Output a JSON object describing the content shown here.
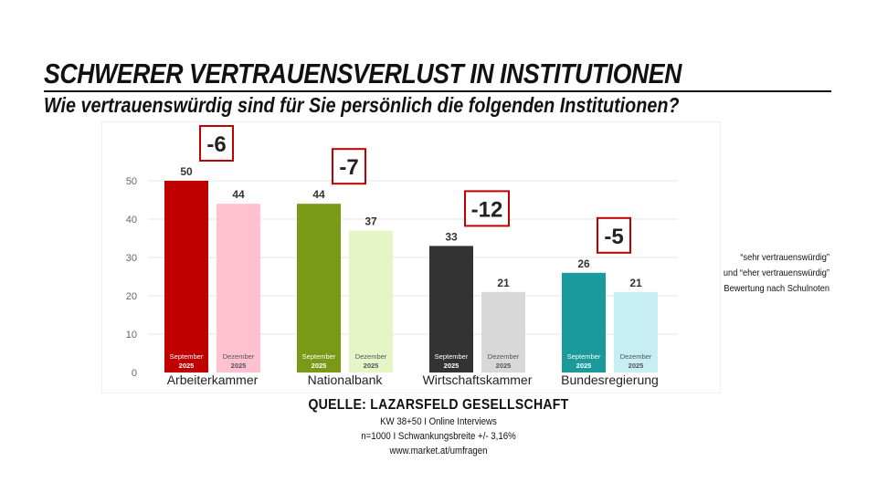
{
  "header": {
    "title": "SCHWERER VERTRAUENSVERLUST IN INSTITUTIONEN",
    "subtitle": "Wie vertrauenswürdig sind für Sie persönlich die folgenden Institutionen?"
  },
  "side_note": {
    "line1": "“sehr vertrauenswürdig”",
    "line2": "und “eher vertrauenswürdig”",
    "line3": "Bewertung nach Schulnoten"
  },
  "source": {
    "heading": "QUELLE: LAZARSFELD GESELLSCHAFT",
    "line1": "KW 38+50 I Online Interviews",
    "line2": "n=1000 I Schwankungsbreite +/- 3,16%",
    "line3": "www.market.at/umfragen"
  },
  "chart_data": {
    "type": "bar",
    "categories": [
      "Arbeiterkammer",
      "Nationalbank",
      "Wirtschaftskammer",
      "Bundesregierung"
    ],
    "series": [
      {
        "name": "September 2025",
        "values": [
          50,
          44,
          33,
          26
        ]
      },
      {
        "name": "Dezember 2025",
        "values": [
          44,
          37,
          21,
          21
        ]
      }
    ],
    "bar_labels": [
      "September",
      "2025",
      "Dezember",
      "2025"
    ],
    "differences": [
      "-6",
      "-7",
      "-12",
      "-5"
    ],
    "ylim": [
      0,
      50
    ],
    "yticks": [
      0,
      10,
      20,
      30,
      40,
      50
    ],
    "grid": true,
    "colors": {
      "september": [
        "#c00000",
        "#7a9a17",
        "#333333",
        "#1a9a9a"
      ],
      "dezember": [
        "#ffc0d0",
        "#e6f5c5",
        "#d8d8d8",
        "#c6eef3"
      ],
      "difference_box": "#c00000"
    }
  }
}
